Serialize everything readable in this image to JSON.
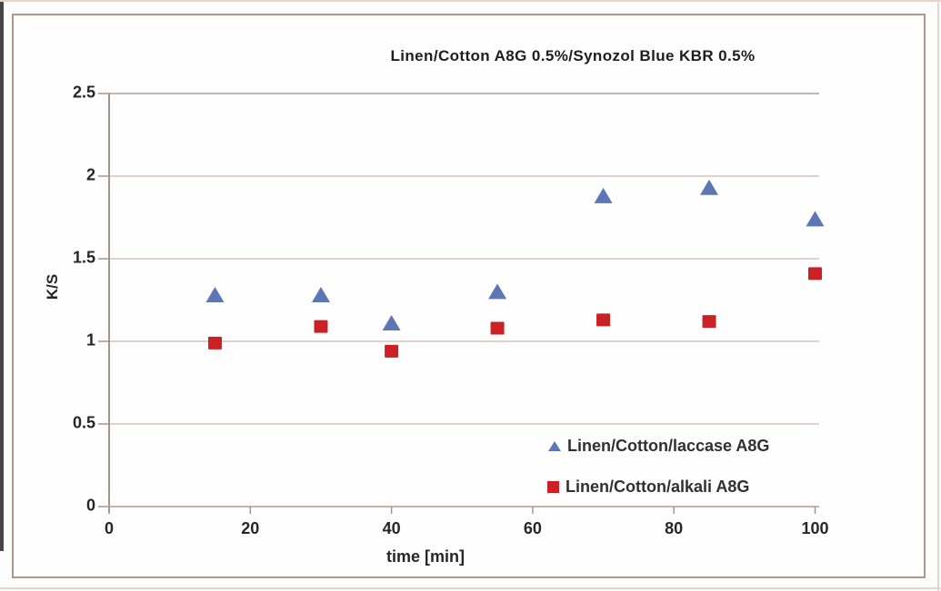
{
  "chart_data": {
    "type": "scatter",
    "title": "Linen/Cotton A8G 0.5%/Synozol Blue KBR 0.5%",
    "xlabel": "time [min]",
    "ylabel": "K/S",
    "xlim": [
      0,
      100
    ],
    "ylim": [
      0,
      2.5
    ],
    "x_ticks": [
      0,
      20,
      40,
      60,
      80,
      100
    ],
    "y_ticks": [
      0,
      0.5,
      1,
      1.5,
      2,
      2.5
    ],
    "grid": "horizontal",
    "legend_position": "lower-right-inside",
    "x": [
      15,
      30,
      40,
      55,
      70,
      85,
      100
    ],
    "series": [
      {
        "name": "Linen/Cotton/laccase A8G",
        "marker": "triangle",
        "color": "#5d77b5",
        "values": [
          1.28,
          1.28,
          1.11,
          1.3,
          1.88,
          1.93,
          1.74
        ]
      },
      {
        "name": "Linen/Cotton/alkali A8G",
        "marker": "square",
        "color": "#cb2026",
        "values": [
          0.99,
          1.09,
          0.94,
          1.08,
          1.13,
          1.12,
          1.41
        ]
      }
    ]
  },
  "colors": {
    "grid": "#d5c2b8",
    "grid_top": "#b09e94",
    "y_axis": "#9a8b82",
    "x_axis": "#bba89e",
    "tick": "#a6958b",
    "frame": "#ab998d",
    "text": "#262626",
    "page_edge_dark": "#474747",
    "page_edge_pink": "#eed2c8"
  }
}
